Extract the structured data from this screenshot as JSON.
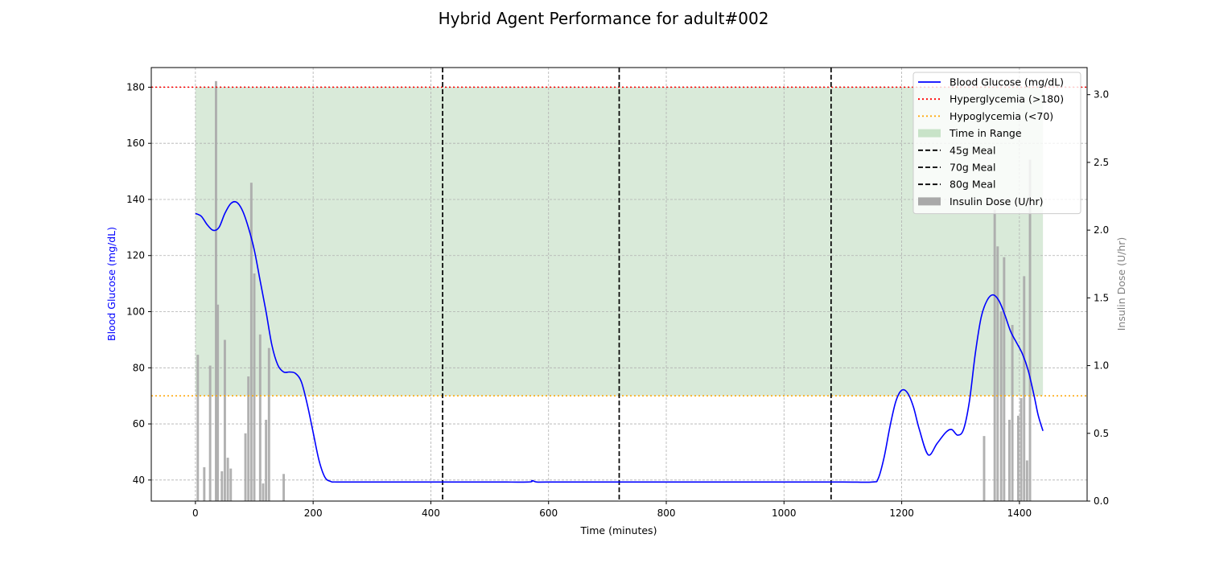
{
  "chart_data": {
    "type": "line",
    "title": "Hybrid Agent Performance for adult#002",
    "xlabel": "Time (minutes)",
    "ylabel": "Blood Glucose (mg/dL)",
    "y2label": "Insulin Dose (U/hr)",
    "xlim": [
      -75,
      1515
    ],
    "ylim": [
      32.5,
      187
    ],
    "y2lim": [
      0,
      3.2
    ],
    "x_ticks": [
      0,
      200,
      400,
      600,
      800,
      1000,
      1200,
      1400
    ],
    "y_ticks": [
      40,
      60,
      80,
      100,
      120,
      140,
      160,
      180
    ],
    "y2_ticks": [
      0.0,
      0.5,
      1.0,
      1.5,
      2.0,
      2.5,
      3.0
    ],
    "y2_tick_labels": [
      "0.0",
      "0.5",
      "1.0",
      "1.5",
      "2.0",
      "2.5",
      "3.0"
    ],
    "grid": true,
    "legend_position": "top-right",
    "colors": {
      "glucose": "#0000ff",
      "hyper": "#ff0000",
      "hypo": "#ffa500",
      "range_fill": "#d9ead9",
      "meal": "#000000",
      "insulin": "#a9a9a9",
      "y2_label": "#808080"
    },
    "legend": [
      {
        "label": "Blood Glucose (mg/dL)",
        "style": "line",
        "color": "#0000ff"
      },
      {
        "label": "Hyperglycemia (>180)",
        "style": "dotted",
        "color": "#ff0000"
      },
      {
        "label": "Hypoglycemia (<70)",
        "style": "dotted",
        "color": "#ffa500"
      },
      {
        "label": "Time in Range",
        "style": "patch",
        "color": "#c8e3c8"
      },
      {
        "label": "45g Meal",
        "style": "dashed",
        "color": "#000000"
      },
      {
        "label": "70g Meal",
        "style": "dashed",
        "color": "#000000"
      },
      {
        "label": "80g Meal",
        "style": "dashed",
        "color": "#000000"
      },
      {
        "label": "Insulin Dose (U/hr)",
        "style": "patch",
        "color": "#a9a9a9"
      }
    ],
    "thresholds": {
      "hyper": 180,
      "hypo": 70
    },
    "time_in_range": {
      "x_start": 0,
      "x_end": 1440,
      "y_low": 70,
      "y_high": 180
    },
    "meals": [
      {
        "label": "45g Meal",
        "x": 420
      },
      {
        "label": "70g Meal",
        "x": 720
      },
      {
        "label": "80g Meal",
        "x": 1080
      }
    ],
    "glucose": {
      "x": [
        0,
        10,
        20,
        30,
        40,
        50,
        60,
        70,
        80,
        90,
        100,
        110,
        120,
        130,
        140,
        150,
        160,
        170,
        180,
        190,
        200,
        210,
        220,
        230,
        240,
        300,
        400,
        500,
        565,
        572,
        580,
        600,
        700,
        800,
        900,
        1000,
        1100,
        1150,
        1160,
        1170,
        1180,
        1190,
        1200,
        1210,
        1220,
        1230,
        1245,
        1260,
        1275,
        1285,
        1295,
        1305,
        1315,
        1325,
        1335,
        1345,
        1355,
        1365,
        1375,
        1385,
        1395,
        1405,
        1415,
        1425,
        1432,
        1440
      ],
      "y": [
        135,
        134,
        131,
        129,
        130,
        135,
        138.5,
        139,
        136,
        130,
        122,
        111,
        100,
        88,
        81,
        78.5,
        78.5,
        78,
        75,
        67,
        57,
        47,
        41,
        39.5,
        39.3,
        39.3,
        39.3,
        39.3,
        39.3,
        39.8,
        39.3,
        39.3,
        39.3,
        39.3,
        39.3,
        39.3,
        39.3,
        39.3,
        40.5,
        48,
        59,
        68,
        72,
        71,
        66,
        58,
        49,
        53,
        57,
        58,
        56,
        58,
        68,
        85,
        98,
        104,
        106,
        104,
        99,
        93,
        89,
        85,
        79,
        70,
        63,
        57.5
      ]
    },
    "insulin": {
      "bar_width": 4,
      "x": [
        4,
        15,
        25,
        35,
        38,
        45,
        50,
        55,
        60,
        85,
        90,
        95,
        100,
        110,
        115,
        120,
        125,
        150,
        1340,
        1358,
        1363,
        1369,
        1374,
        1383,
        1388,
        1398,
        1403,
        1408,
        1413,
        1418
      ],
      "values": [
        1.08,
        0.25,
        1.0,
        3.1,
        1.45,
        0.22,
        1.19,
        0.32,
        0.24,
        0.5,
        0.92,
        2.35,
        1.68,
        1.23,
        0.13,
        0.6,
        1.13,
        0.2,
        0.48,
        2.15,
        1.88,
        1.4,
        1.8,
        0.6,
        1.3,
        0.63,
        0.76,
        1.66,
        0.3,
        2.52
      ]
    }
  }
}
